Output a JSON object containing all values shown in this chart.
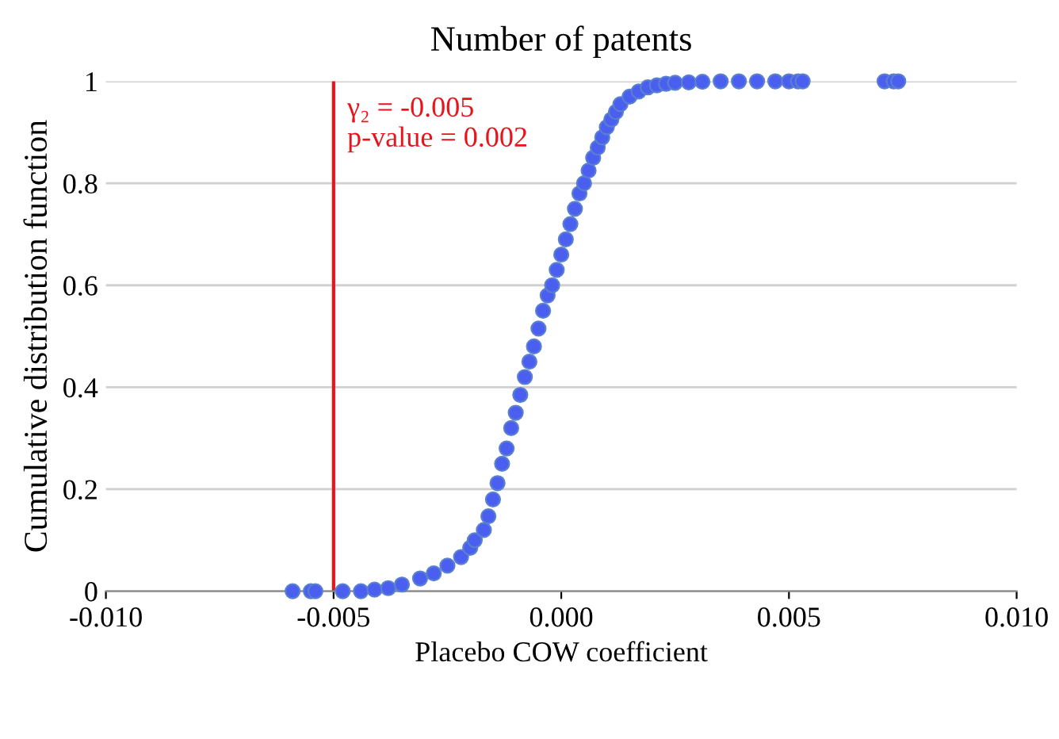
{
  "chart_data": {
    "type": "scatter",
    "title": "Number of patents",
    "xlabel": "Placebo COW coefficient",
    "ylabel": "Cumulative distribution function",
    "x": [
      -0.0059,
      -0.0055,
      -0.0054,
      -0.0048,
      -0.0044,
      -0.0041,
      -0.0038,
      -0.0035,
      -0.0031,
      -0.0028,
      -0.0025,
      -0.0022,
      -0.002,
      -0.0019,
      -0.0017,
      -0.0016,
      -0.0015,
      -0.0014,
      -0.0013,
      -0.0012,
      -0.0011,
      -0.001,
      -0.0009,
      -0.0008,
      -0.0007,
      -0.0006,
      -0.0005,
      -0.0004,
      -0.0003,
      -0.0002,
      -0.0001,
      0.0,
      0.0001,
      0.0002,
      0.0003,
      0.0004,
      0.0005,
      0.0006,
      0.0007,
      0.0008,
      0.0009,
      0.001,
      0.0011,
      0.0012,
      0.0013,
      0.0015,
      0.0017,
      0.0019,
      0.0021,
      0.0023,
      0.0025,
      0.0028,
      0.0031,
      0.0035,
      0.0039,
      0.0043,
      0.0047,
      0.005,
      0.0052,
      0.0053,
      0.0071,
      0.0073,
      0.0074
    ],
    "values": [
      0.0,
      0.0,
      0.0,
      0.0,
      0.0,
      0.003,
      0.006,
      0.013,
      0.025,
      0.035,
      0.05,
      0.067,
      0.085,
      0.1,
      0.12,
      0.147,
      0.18,
      0.212,
      0.25,
      0.28,
      0.32,
      0.35,
      0.385,
      0.42,
      0.45,
      0.48,
      0.515,
      0.55,
      0.58,
      0.6,
      0.63,
      0.66,
      0.69,
      0.72,
      0.75,
      0.78,
      0.8,
      0.825,
      0.85,
      0.87,
      0.89,
      0.91,
      0.925,
      0.94,
      0.955,
      0.97,
      0.98,
      0.988,
      0.992,
      0.995,
      0.997,
      0.998,
      0.999,
      1.0,
      1.0,
      1.0,
      1.0,
      1.0,
      1.0,
      1.0,
      1.0,
      1.0,
      1.0
    ],
    "color": "#4a5ef0",
    "marker": "circle",
    "xlim": [
      -0.01,
      0.01
    ],
    "xticks": [
      {
        "value": -0.01,
        "label": "-0.010"
      },
      -0.005,
      {
        "value": 0.0,
        "label": "0.000"
      },
      0.005,
      {
        "value": 0.01,
        "label": "0.010"
      }
    ],
    "ylim": [
      0,
      1
    ],
    "yticks": [
      0,
      0.2,
      0.4,
      0.6,
      0.8,
      1
    ],
    "grid": "y",
    "ref_lines": [
      {
        "axis": "x",
        "value": -0.005,
        "label": "γ₂ = -0.005\np-value = 0.002",
        "color": "#e8141c"
      }
    ]
  }
}
